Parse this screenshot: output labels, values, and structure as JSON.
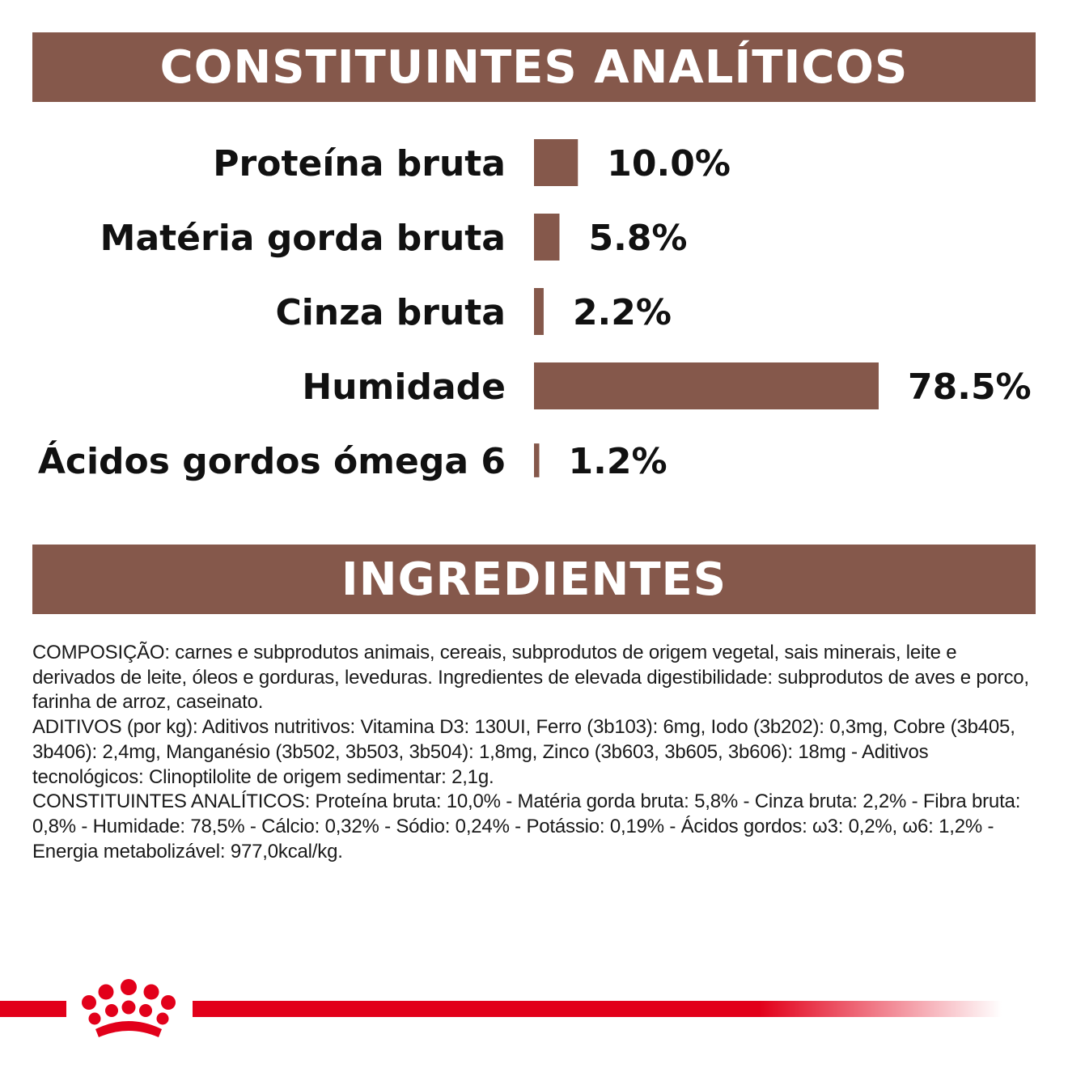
{
  "colors": {
    "bar": "#85584b",
    "banner": "#85584b",
    "brand_red": "#e2001a"
  },
  "headings": {
    "analytics": "CONSTITUINTES ANALÍTICOS",
    "ingredients": "INGREDIENTES"
  },
  "chart_data": {
    "type": "bar",
    "orientation": "horizontal",
    "title": "CONSTITUINTES ANALÍTICOS",
    "unit": "%",
    "xlim": [
      0,
      78.5
    ],
    "categories": [
      "Proteína bruta",
      "Matéria gorda bruta",
      "Cinza bruta",
      "Humidade",
      "Ácidos gordos ómega 6"
    ],
    "values": [
      10.0,
      5.8,
      2.2,
      78.5,
      1.2
    ],
    "labels": [
      "10.0%",
      "5.8%",
      "2.2%",
      "78.5%",
      "1.2%"
    ]
  },
  "ingredients": {
    "paragraphs": [
      "COMPOSIÇÃO: carnes e subprodutos animais, cereais, subprodutos de origem vegetal, sais minerais, leite e derivados de leite, óleos e gorduras, leveduras. Ingredientes de elevada digestibilidade: subprodutos de aves e porco, farinha de arroz, caseinato.",
      "ADITIVOS (por kg): Aditivos nutritivos: Vitamina D3: 130UI, Ferro (3b103): 6mg, Iodo (3b202): 0,3mg, Cobre (3b405, 3b406): 2,4mg, Manganésio (3b502, 3b503, 3b504): 1,8mg, Zinco (3b603, 3b605, 3b606): 18mg - Aditivos tecnológicos: Clinoptilolite de origem sedimentar: 2,1g.",
      "CONSTITUINTES ANALÍTICOS: Proteína bruta: 10,0% - Matéria gorda bruta: 5,8% - Cinza bruta: 2,2% - Fibra bruta: 0,8% - Humidade: 78,5% - Cálcio: 0,32% - Sódio: 0,24% - Potássio: 0,19% - Ácidos gordos: ω3: 0,2%, ω6: 1,2% - Energia metabolizável: 977,0kcal/kg."
    ]
  },
  "footer": {
    "logo_icon": "royal-canin-crown-icon"
  }
}
